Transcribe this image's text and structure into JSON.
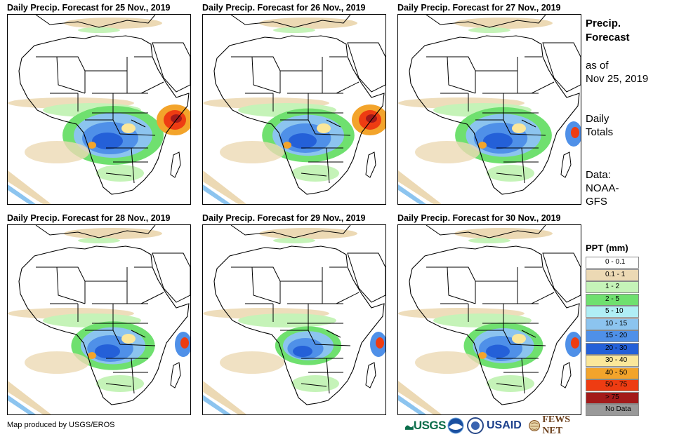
{
  "panels": [
    {
      "title": "Daily Precip. Forecast for 25 Nov., 2019",
      "rain_level": 1.0,
      "hotspots": [
        "east-horn",
        "central-block"
      ]
    },
    {
      "title": "Daily Precip. Forecast for 26 Nov., 2019",
      "rain_level": 0.9,
      "hotspots": [
        "east-horn",
        "central-block"
      ]
    },
    {
      "title": "Daily Precip. Forecast for 27 Nov., 2019",
      "rain_level": 0.95,
      "hotspots": [
        "east-coast",
        "central-block"
      ]
    },
    {
      "title": "Daily Precip. Forecast for 28 Nov., 2019",
      "rain_level": 0.8,
      "hotspots": [
        "east-coast",
        "central-block"
      ]
    },
    {
      "title": "Daily Precip. Forecast for 29 Nov., 2019",
      "rain_level": 0.6,
      "hotspots": [
        "east-coast"
      ]
    },
    {
      "title": "Daily Precip. Forecast for 30 Nov., 2019",
      "rain_level": 0.75,
      "hotspots": [
        "east-coast",
        "central-block"
      ]
    }
  ],
  "side": {
    "title_line1": "Precip.",
    "title_line2": "Forecast",
    "asof_line1": "as of",
    "asof_line2": "Nov 25, 2019",
    "daily_line1": "Daily",
    "daily_line2": "Totals",
    "data_line1": "Data:",
    "data_line2": "NOAA-",
    "data_line3": "GFS"
  },
  "legend": {
    "title": "PPT (mm)",
    "items": [
      {
        "label": "0 - 0.1",
        "color": "#ffffff"
      },
      {
        "label": "0.1 - 1",
        "color": "#ecd9b4"
      },
      {
        "label": "1 - 2",
        "color": "#c5f3b8"
      },
      {
        "label": "2 - 5",
        "color": "#6fe06f"
      },
      {
        "label": "5 - 10",
        "color": "#b0eef5"
      },
      {
        "label": "10 - 15",
        "color": "#8cc4ef"
      },
      {
        "label": "15 - 20",
        "color": "#4f90e8"
      },
      {
        "label": "20 - 30",
        "color": "#2460d8"
      },
      {
        "label": "30 - 40",
        "color": "#fbe79a"
      },
      {
        "label": "40 - 50",
        "color": "#f3a42b"
      },
      {
        "label": "50 - 75",
        "color": "#ee3c12"
      },
      {
        "label": "> 75",
        "color": "#a31a1a"
      },
      {
        "label": "No Data",
        "color": "#999999"
      }
    ]
  },
  "credit": "Map produced by USGS/EROS",
  "logos": {
    "usgs": "USGS",
    "usaid": "USAID",
    "fews": "FEWS NET"
  }
}
